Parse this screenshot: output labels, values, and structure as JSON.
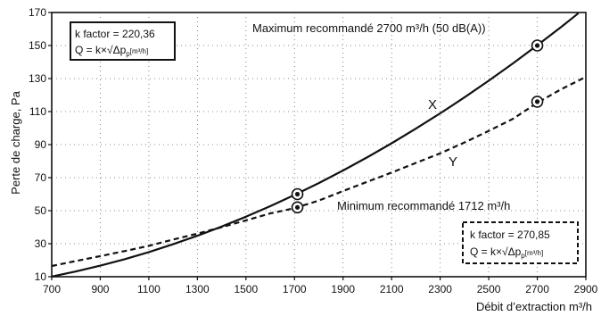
{
  "chart_data": {
    "type": "line",
    "xlabel": "Débit d’extraction m³/h",
    "ylabel": "Perte de charge, Pa",
    "xlim": [
      700,
      2900
    ],
    "ylim": [
      10,
      170
    ],
    "xticks": [
      700,
      900,
      1100,
      1300,
      1500,
      1700,
      1900,
      2100,
      2300,
      2500,
      2700,
      2900
    ],
    "yticks": [
      10,
      30,
      50,
      70,
      90,
      110,
      130,
      150,
      170
    ],
    "x_tick_labels": [
      "700",
      "900",
      "1100",
      "1300",
      "1500",
      "1700",
      "1900",
      "2100",
      "2300",
      "2500",
      "2700",
      "2900"
    ],
    "y_tick_labels": [
      "10",
      "30",
      "50",
      "70",
      "90",
      "110",
      "130",
      "150",
      "170"
    ],
    "grid": "dotted",
    "series": [
      {
        "name": "X",
        "style": "solid",
        "k_factor": 220.36,
        "x": [
          700,
          800,
          900,
          1000,
          1100,
          1200,
          1300,
          1400,
          1500,
          1600,
          1700,
          1800,
          1900,
          2000,
          2100,
          2200,
          2300,
          2400,
          2500,
          2600,
          2700,
          2800,
          2870
        ],
        "y": [
          10.1,
          13.2,
          16.7,
          20.6,
          24.9,
          29.7,
          34.8,
          40.4,
          46.3,
          52.7,
          59.5,
          66.7,
          74.3,
          82.4,
          90.8,
          99.7,
          108.9,
          118.6,
          128.7,
          139.2,
          150.1,
          161.4,
          169.6
        ],
        "markers": [
          {
            "x": 1712,
            "y": 60
          },
          {
            "x": 2700,
            "y": 150
          }
        ]
      },
      {
        "name": "Y",
        "style": "dashed",
        "k_factor": 270.85,
        "x": [
          700,
          800,
          900,
          1000,
          1100,
          1200,
          1300,
          1400,
          1500,
          1600,
          1700,
          1800,
          1900,
          2000,
          2100,
          2200,
          2300,
          2400,
          2500,
          2600,
          2700,
          2800,
          2900
        ],
        "y": [
          16.5,
          19.5,
          22.5,
          25.5,
          28.7,
          32.5,
          36.1,
          40.0,
          44.1,
          48.3,
          51.5,
          56.1,
          61.9,
          67.5,
          73.1,
          78.9,
          84.7,
          91.3,
          98.3,
          105.6,
          115.3,
          123.7,
          131.0
        ],
        "markers": [
          {
            "x": 1712,
            "y": 52
          },
          {
            "x": 2700,
            "y": 116
          }
        ]
      }
    ],
    "annotations": {
      "max_text": "Maximum recommandé 2700 m³/h (50 dB(A))",
      "min_text": "Minimum recommandé 1712 m³/h",
      "label_x": "X",
      "label_y": "Y"
    },
    "kbox_top": {
      "line1": "k factor = 220,36",
      "formula_main": "Q = k×√Δp",
      "formula_sub": "p",
      "formula_unit": "[m³/h]"
    },
    "kbox_bottom": {
      "line1": "k factor = 270,85",
      "formula_main": "Q = k×√Δp",
      "formula_sub": "p",
      "formula_unit": "[m³/h]"
    }
  }
}
